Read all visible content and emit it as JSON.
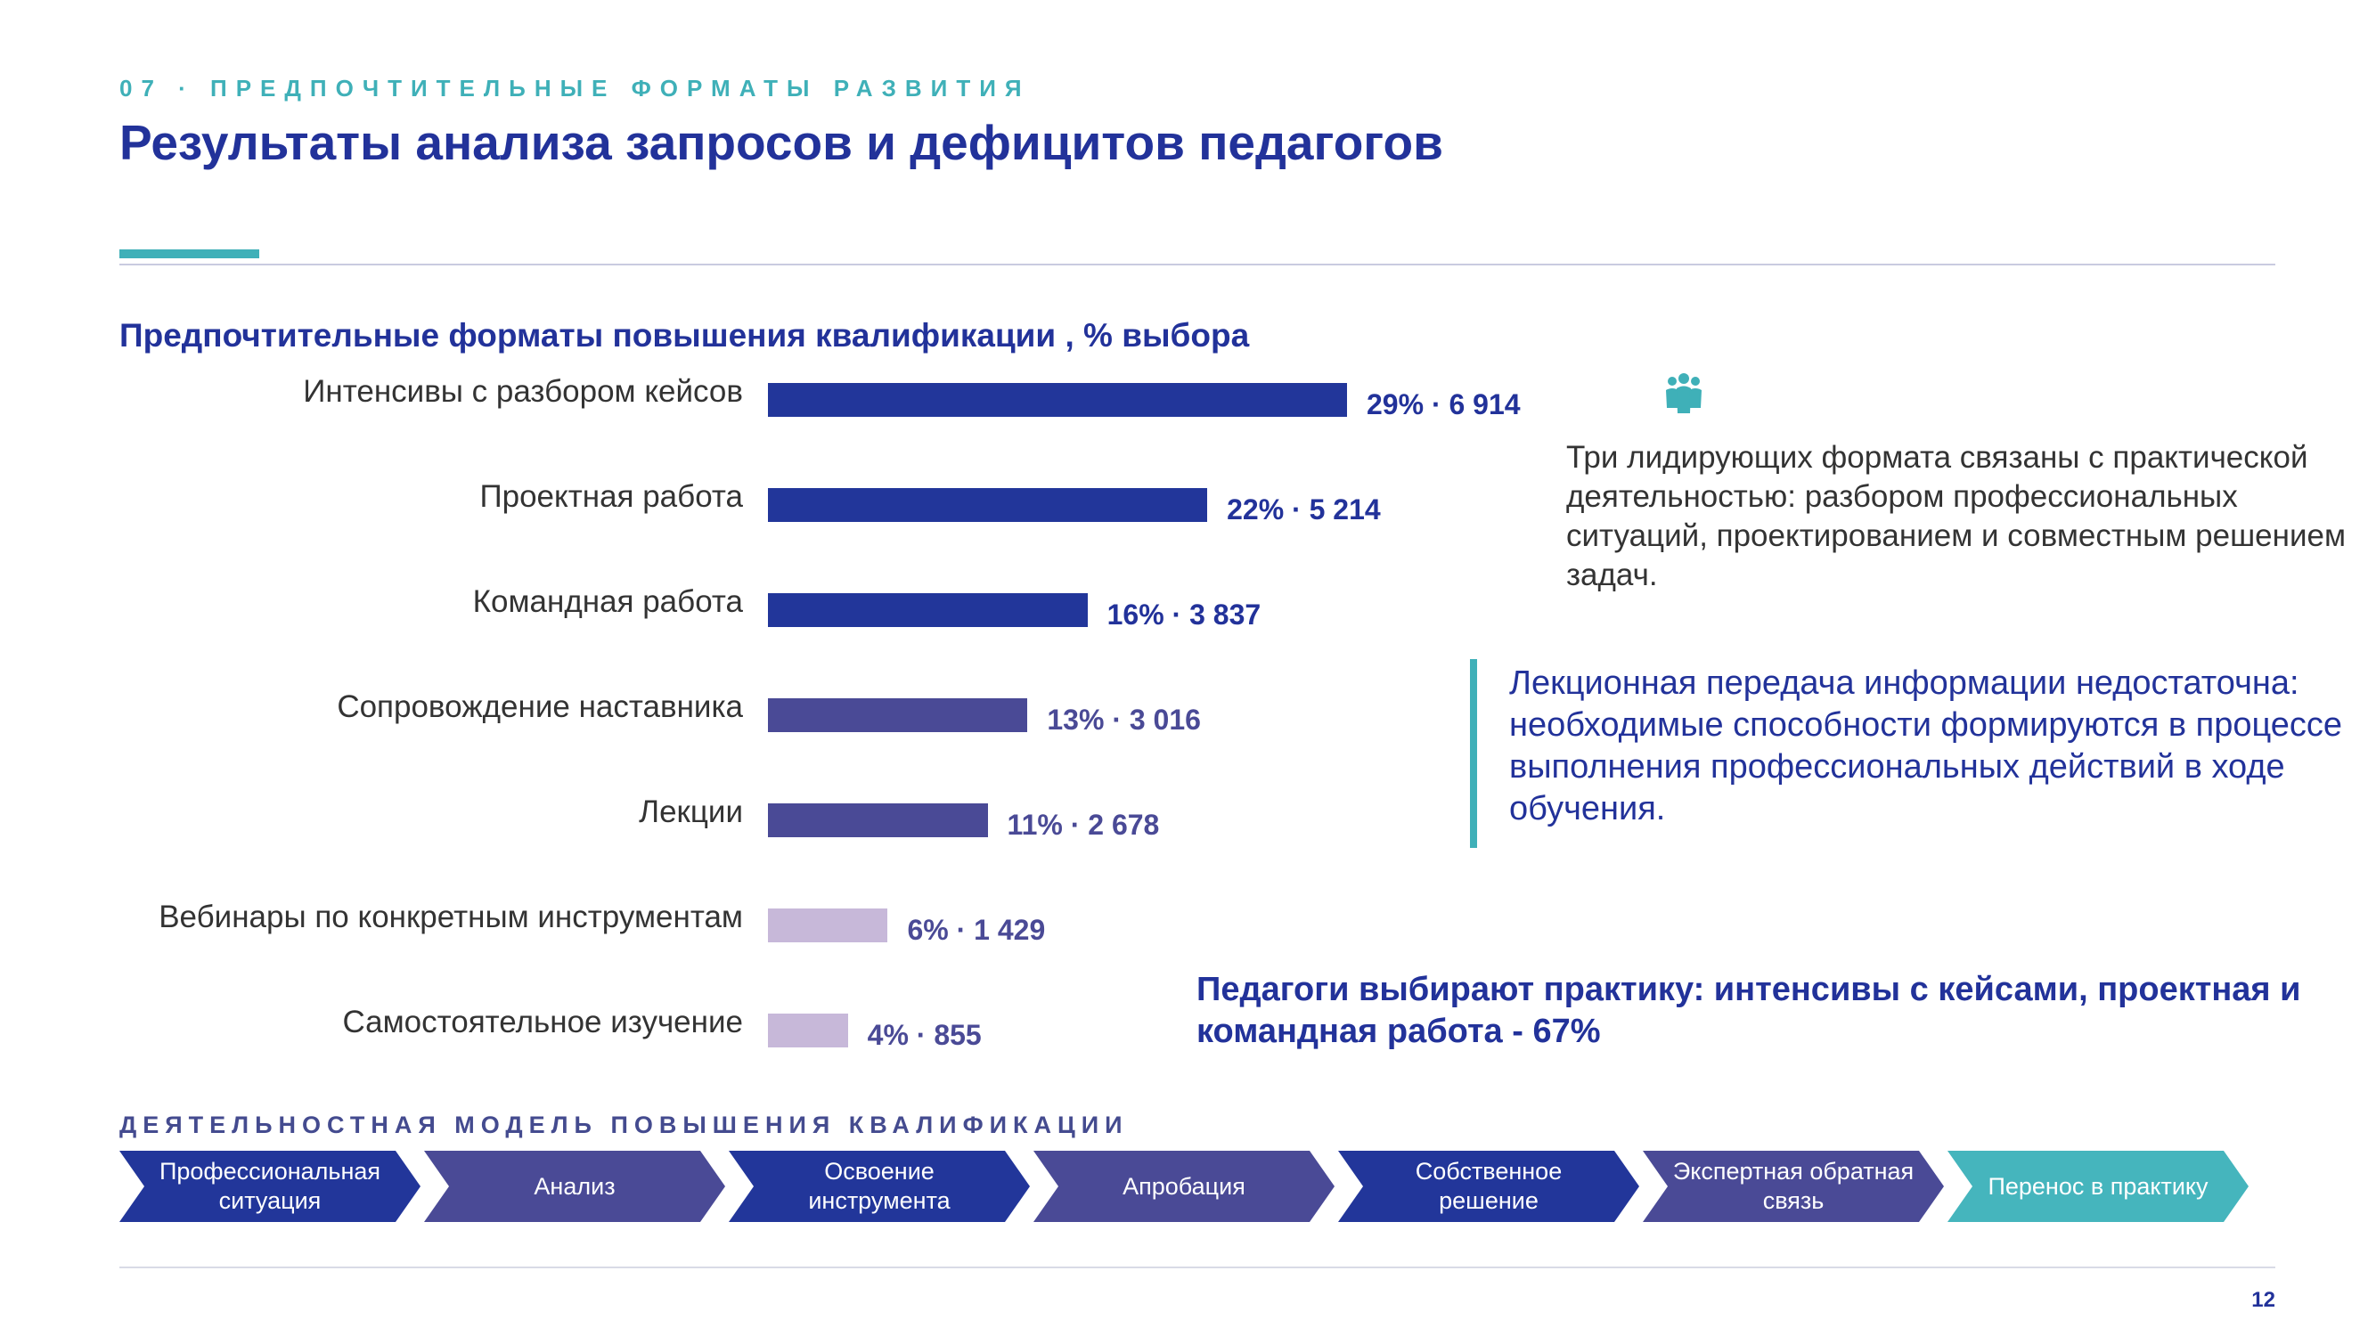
{
  "header": {
    "kicker": "07 · ПРЕДПОЧТИТЕЛЬНЫЕ ФОРМАТЫ РАЗВИТИЯ",
    "title": "Результаты анализа запросов и дефицитов  педагогов"
  },
  "chart_data": {
    "type": "bar",
    "orientation": "horizontal",
    "title": "Предпочтительные форматы повышения квалификации , % выбора",
    "categories": [
      "Интенсивы с разбором кейсов",
      "Проектная работа",
      "Командная работа",
      "Сопровождение наставника",
      "Лекции",
      "Вебинары по конкретным инструментам",
      "Самостоятельное изучение"
    ],
    "values": [
      29,
      22,
      16,
      13,
      11,
      6,
      4
    ],
    "counts": [
      6914,
      5214,
      3837,
      3016,
      2678,
      1429,
      855
    ],
    "data_labels": [
      "29% · 6 914",
      "22% · 5 214",
      "16% · 3 837",
      "13% · 3 016",
      "11% · 2 678",
      "6% · 1 429",
      "4% · 855"
    ],
    "colors": [
      "#22369a",
      "#22369a",
      "#22369a",
      "#4a4a96",
      "#4a4a96",
      "#c7b8d9",
      "#c7b8d9"
    ],
    "label_colors": [
      "#22329a",
      "#22329a",
      "#22329a",
      "#4a4a96",
      "#4a4a96",
      "#4a4a96",
      "#4a4a96"
    ],
    "grid": false,
    "legend": "none"
  },
  "insight": {
    "icon": "people-icon",
    "text": "Три лидирующих формата связаны с практической деятельностью: разбором профессиональных ситуаций, проектированием и совместным решением задач."
  },
  "quote": {
    "text": "Лекционная передача информации недостаточна: необходимые  способности формируются в процессе выполнения профессиональных действий в ходе обучения."
  },
  "conclusion": {
    "text": "Педагоги выбирают практику: интенсивы с кейсами, проектная и командная работа - 67%"
  },
  "model": {
    "title": "ДЕЯТЕЛЬНОСТНАЯ МОДЕЛЬ ПОВЫШЕНИЯ КВАЛИФИКАЦИИ",
    "steps": [
      {
        "label": "Профессиональная ситуация",
        "color": "#22369a"
      },
      {
        "label": "Анализ",
        "color": "#4a4a96"
      },
      {
        "label": "Освоение инструмента",
        "color": "#22369a"
      },
      {
        "label": "Апробация",
        "color": "#4a4a96"
      },
      {
        "label": "Собственное решение",
        "color": "#22369a"
      },
      {
        "label": "Экспертная обратная связь",
        "color": "#4a4a96"
      },
      {
        "label": "Перенос в практику",
        "color": "#45b5bd"
      }
    ]
  },
  "footer": {
    "page_number": "12"
  },
  "colors": {
    "accent": "#3fb0b8",
    "primary": "#22329a"
  }
}
